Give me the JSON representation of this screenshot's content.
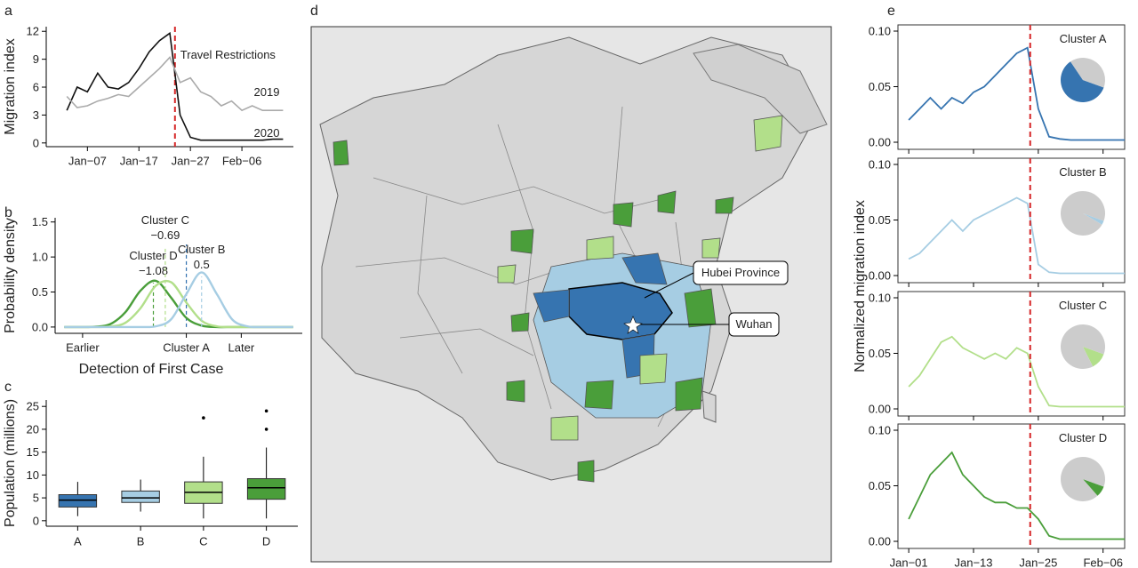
{
  "chart_data": [
    {
      "type": "line",
      "panel": "a",
      "ylabel": "Migration index",
      "annotation": "Travel Restrictions",
      "vline": 24,
      "vline_color": "#d62728",
      "xlim": [
        -1,
        47
      ],
      "xticks": [
        {
          "value": 7,
          "label": "Jan−07"
        },
        {
          "value": 17,
          "label": "Jan−17"
        },
        {
          "value": 27,
          "label": "Jan−27"
        },
        {
          "value": 37,
          "label": "Feb−06"
        }
      ],
      "ylim": [
        -0.4,
        12.5
      ],
      "yticks": [
        0,
        3,
        6,
        9,
        12
      ],
      "x": [
        3,
        5,
        7,
        9,
        11,
        13,
        15,
        17,
        19,
        21,
        23,
        25,
        27,
        29,
        31,
        33,
        35,
        37,
        39,
        41,
        43,
        45
      ],
      "series": [
        {
          "name": "2020",
          "color": "#111111",
          "values": [
            3.5,
            6,
            5.5,
            7.5,
            6,
            5.8,
            6.5,
            8,
            9.8,
            11,
            11.8,
            3,
            0.6,
            0.3,
            0.3,
            0.3,
            0.3,
            0.3,
            0.3,
            0.3,
            0.4,
            0.4
          ]
        },
        {
          "name": "2019",
          "color": "#aaaaaa",
          "values": [
            5,
            3.8,
            4,
            4.5,
            4.8,
            5.2,
            5,
            6,
            7,
            8,
            9.2,
            6.5,
            7,
            5.5,
            5,
            4,
            4.5,
            3.5,
            4,
            3.5,
            3.5,
            3.5
          ]
        }
      ]
    },
    {
      "type": "density",
      "panel": "b",
      "xlabel": "Detection of First Case",
      "ylabel": "Probability density",
      "xlim": [
        -4.3,
        3.8
      ],
      "xticks": [
        {
          "value": -3.4,
          "label": "Earlier"
        },
        {
          "value": 0,
          "label": "Cluster A"
        },
        {
          "value": 1.8,
          "label": "Later"
        }
      ],
      "ylim": [
        -0.09,
        1.56
      ],
      "yticks": [
        {
          "value": 0,
          "label": "0.0"
        },
        0.5,
        {
          "value": 1,
          "label": "1.0"
        },
        1.5
      ],
      "reference_color": "#2f6fae",
      "x": [
        -4,
        -3.5,
        -3,
        -2.5,
        -2,
        -1.5,
        -1,
        -0.5,
        0,
        0.5,
        1,
        1.5,
        2,
        2.5,
        3,
        3.5
      ],
      "series": [
        {
          "name": "Cluster D",
          "color": "#4a9e3a",
          "mean": {
            "value": -1.08,
            "label": "−1.08"
          },
          "values": [
            0,
            0,
            0.004,
            0.04,
            0.21,
            0.52,
            0.66,
            0.42,
            0.13,
            0.02,
            0,
            0,
            0,
            0,
            0,
            0
          ]
        },
        {
          "name": "Cluster C",
          "color": "#b2df8a",
          "mean": {
            "value": -0.69,
            "label": "−0.69"
          },
          "values": [
            0,
            0,
            0,
            0.007,
            0.06,
            0.27,
            0.59,
            0.64,
            0.35,
            0.09,
            0.01,
            0,
            0,
            0,
            0,
            0
          ]
        },
        {
          "name": "Cluster B",
          "color": "#a6cde3",
          "mean": 0.5,
          "values": [
            0,
            0,
            0,
            0,
            0,
            0,
            0.01,
            0.11,
            0.47,
            0.78,
            0.47,
            0.11,
            0.01,
            0,
            0,
            0
          ]
        }
      ]
    },
    {
      "type": "box",
      "panel": "c",
      "ylabel": "Population (millions)",
      "categories": [
        "A",
        "B",
        "C",
        "D"
      ],
      "ylim": [
        -1.2,
        26.4
      ],
      "yticks": [
        0,
        5,
        10,
        15,
        20,
        25
      ],
      "boxes": [
        {
          "color": "#3674b0",
          "q1": 3,
          "median": 4.5,
          "q3": 5.7,
          "whisker_low": 1,
          "whisker_high": 8.5,
          "outliers": []
        },
        {
          "color": "#a6cde3",
          "q1": 4,
          "median": 5,
          "q3": 6.5,
          "whisker_low": 2,
          "whisker_high": 9,
          "outliers": []
        },
        {
          "color": "#b2df8a",
          "q1": 3.8,
          "median": 6.2,
          "q3": 8.5,
          "whisker_low": 0.5,
          "whisker_high": 14,
          "outliers": [
            22.5
          ]
        },
        {
          "color": "#4a9e3a",
          "q1": 4.7,
          "median": 7.2,
          "q3": 9.2,
          "whisker_low": 0.5,
          "whisker_high": 16,
          "outliers": [
            20,
            24
          ]
        }
      ]
    },
    {
      "type": "map",
      "panel": "d",
      "labels": [
        "Hubei Province",
        "Wuhan"
      ]
    },
    {
      "type": "small_multiples",
      "panel": "e",
      "ylabel": "Normalized migration index",
      "vline": 23.5,
      "vline_color": "#d62728",
      "pie_rest_color": "#cccccc",
      "xlim": [
        -1,
        41
      ],
      "xticks": [
        {
          "value": 1,
          "label": "Jan−01"
        },
        {
          "value": 13,
          "label": "Jan−13"
        },
        {
          "value": 25,
          "label": "Jan−25"
        },
        {
          "value": 37,
          "label": "Feb−06"
        }
      ],
      "ylim": [
        -0.0064,
        0.1056
      ],
      "yticks": [
        {
          "value": 0,
          "label": "0.00"
        },
        0.05,
        {
          "value": 0.1,
          "label": "0.10"
        }
      ],
      "x": [
        1,
        3,
        5,
        7,
        9,
        11,
        13,
        15,
        17,
        19,
        21,
        23,
        25,
        27,
        29,
        31,
        33,
        35,
        37,
        39,
        41
      ],
      "panels": [
        {
          "title": "Cluster A",
          "color": "#3674b0",
          "pie": [
            60,
            40
          ],
          "values": [
            0.02,
            0.03,
            0.04,
            0.03,
            0.04,
            0.035,
            0.045,
            0.05,
            0.06,
            0.07,
            0.08,
            0.085,
            0.03,
            0.005,
            0.003,
            0.002,
            0.002,
            0.002,
            0.002,
            0.002,
            0.002
          ]
        },
        {
          "title": "Cluster B",
          "color": "#a6cde3",
          "pie": [
            3,
            97
          ],
          "values": [
            0.015,
            0.02,
            0.03,
            0.04,
            0.05,
            0.04,
            0.05,
            0.055,
            0.06,
            0.065,
            0.07,
            0.065,
            0.01,
            0.003,
            0.002,
            0.002,
            0.002,
            0.002,
            0.002,
            0.002,
            0.002
          ]
        },
        {
          "title": "Cluster C",
          "color": "#b2df8a",
          "pie": [
            12,
            88
          ],
          "values": [
            0.02,
            0.03,
            0.045,
            0.06,
            0.065,
            0.055,
            0.05,
            0.045,
            0.05,
            0.045,
            0.055,
            0.05,
            0.02,
            0.003,
            0.002,
            0.002,
            0.002,
            0.002,
            0.002,
            0.002,
            0.002
          ]
        },
        {
          "title": "Cluster D",
          "color": "#4a9e3a",
          "pie": [
            8,
            92
          ],
          "values": [
            0.02,
            0.04,
            0.06,
            0.07,
            0.08,
            0.06,
            0.05,
            0.04,
            0.035,
            0.035,
            0.03,
            0.03,
            0.02,
            0.005,
            0.002,
            0.002,
            0.002,
            0.002,
            0.002,
            0.002,
            0.002
          ]
        }
      ]
    }
  ]
}
